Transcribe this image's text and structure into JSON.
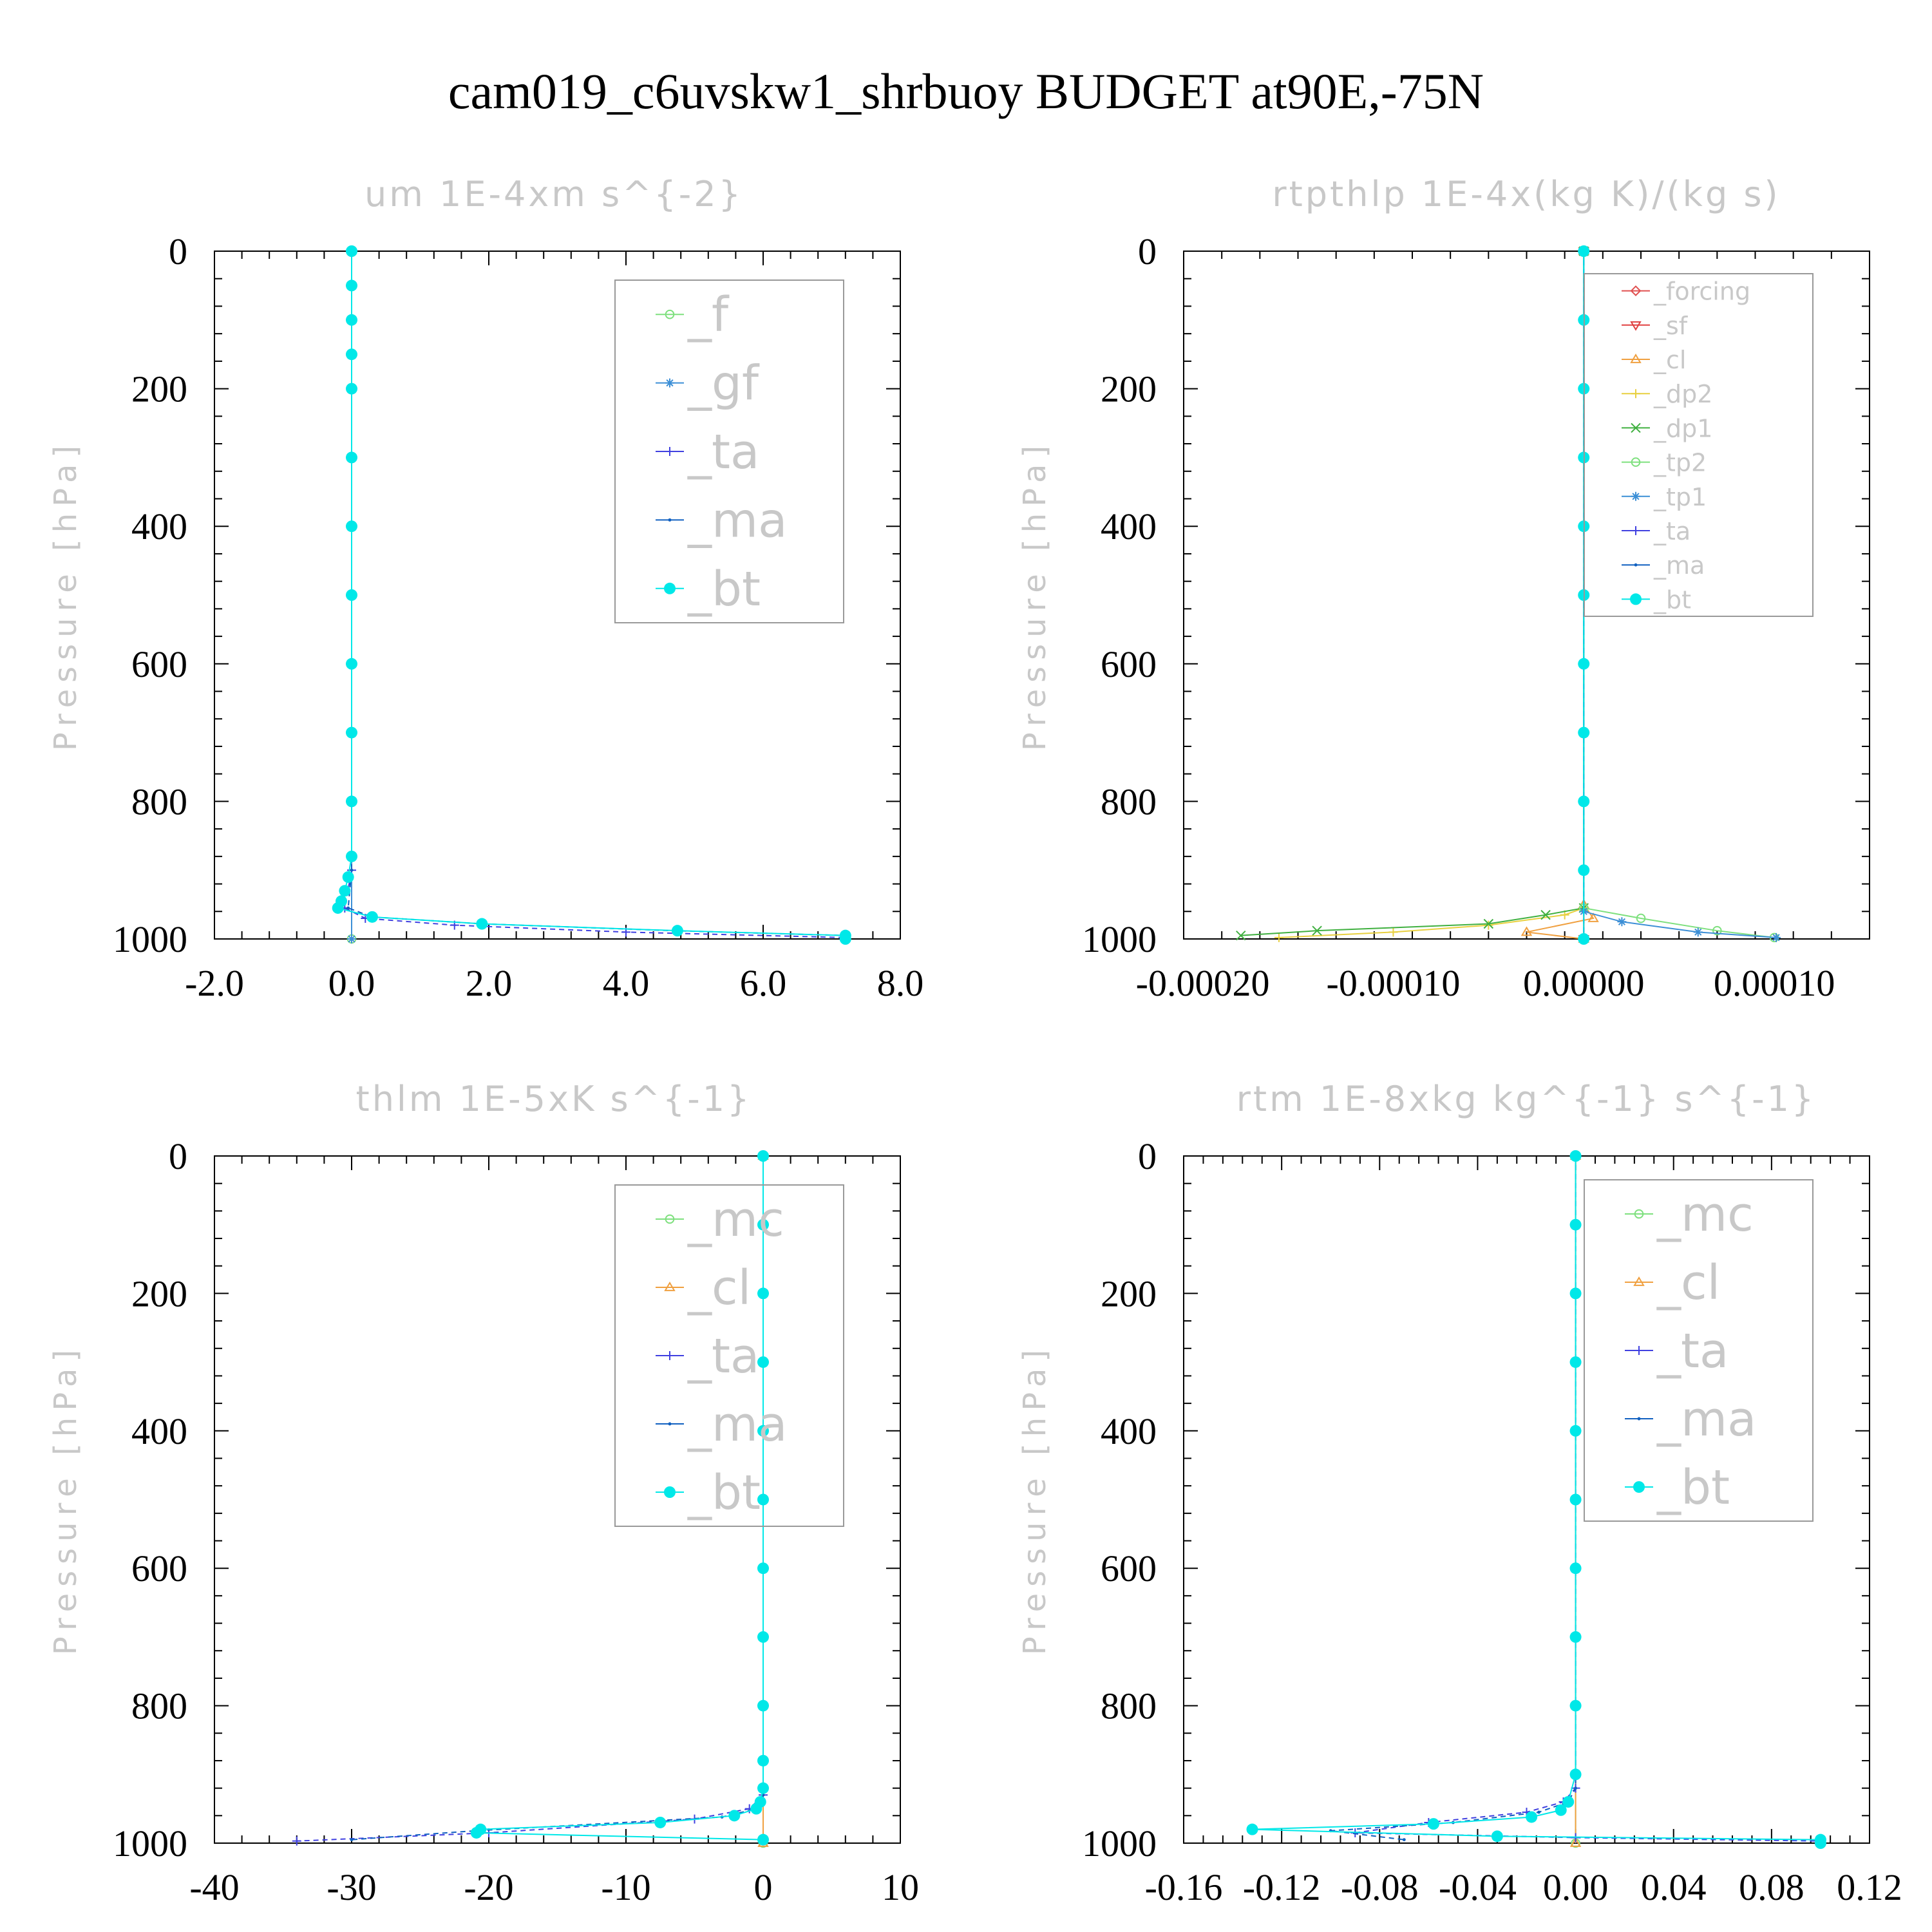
{
  "title": "cam019_c6uvskw1_shrbuoy  BUDGET at90E,-75N",
  "colors": {
    "_f": "#7ee07e",
    "_gf": "#3c8fd6",
    "_ta": "#4040e0",
    "_ma": "#1060c0",
    "_bt": "#00e8e8",
    "_forcing": "#e05050",
    "_sf": "#e04040",
    "_cl": "#f0a040",
    "_dp2": "#e8d040",
    "_dp1": "#40b040",
    "_tp2": "#7ee07e",
    "_tp1": "#3c8fd6",
    "_mc": "#7ee07e"
  },
  "chart_data": [
    {
      "type": "line",
      "title": "um  1E-4xm s^{-2}",
      "ylabel": "Pressure [hPa]",
      "xlim": [
        -2.0,
        8.0
      ],
      "ylim": [
        1000,
        0
      ],
      "xticks": [
        "-2.0",
        "0.0",
        "2.0",
        "4.0",
        "6.0",
        "8.0"
      ],
      "yticks": [
        "0",
        "200",
        "400",
        "600",
        "800",
        "1000"
      ],
      "legend": [
        "_f",
        "_gf",
        "_ta",
        "_ma",
        "_bt"
      ],
      "series": [
        {
          "name": "_f",
          "x": [
            0,
            0,
            0
          ],
          "y": [
            0,
            500,
            1000
          ]
        },
        {
          "name": "_gf",
          "x": [
            0,
            0,
            0
          ],
          "y": [
            0,
            500,
            1000
          ]
        },
        {
          "name": "_ta",
          "x": [
            0,
            0,
            -0.1,
            0.2,
            1.5,
            4.0,
            7.2
          ],
          "y": [
            0,
            900,
            955,
            970,
            980,
            990,
            998
          ]
        },
        {
          "name": "_ma",
          "x": [
            0,
            0,
            -0.05,
            0.3,
            1.9,
            4.7,
            7.2
          ],
          "y": [
            0,
            900,
            955,
            968,
            978,
            988,
            995
          ]
        },
        {
          "name": "_bt",
          "x": [
            0,
            0,
            0,
            0,
            0,
            0,
            0,
            0,
            0,
            0,
            0,
            0,
            -0.05,
            -0.1,
            -0.15,
            -0.2,
            0.3,
            1.9,
            4.75,
            7.2,
            7.2
          ],
          "y": [
            0,
            50,
            100,
            150,
            200,
            300,
            400,
            500,
            600,
            700,
            800,
            880,
            910,
            930,
            945,
            955,
            968,
            978,
            988,
            995,
            1000
          ]
        }
      ]
    },
    {
      "type": "line",
      "title": "rtpthlp  1E-4x(kg K)/(kg s)",
      "ylabel": "Pressure [hPa]",
      "xlim": [
        -0.00021,
        0.00015
      ],
      "ylim": [
        1000,
        0
      ],
      "xticks": [
        "-0.00020",
        "-0.00010",
        "0.00000",
        "0.00010"
      ],
      "yticks": [
        "0",
        "200",
        "400",
        "600",
        "800",
        "1000"
      ],
      "legend": [
        "_forcing",
        "_sf",
        "_cl",
        "_dp2",
        "_dp1",
        "_tp2",
        "_tp1",
        "_ta",
        "_ma",
        "_bt"
      ],
      "series": [
        {
          "name": "_forcing",
          "x": [
            0,
            0
          ],
          "y": [
            0,
            1000
          ]
        },
        {
          "name": "_sf",
          "x": [
            0,
            0
          ],
          "y": [
            0,
            1000
          ]
        },
        {
          "name": "_cl",
          "x": [
            0,
            0,
            5e-06,
            -3e-05,
            0
          ],
          "y": [
            0,
            950,
            970,
            990,
            1000
          ]
        },
        {
          "name": "_dp2",
          "x": [
            0,
            0,
            -1e-05,
            -5e-05,
            -0.0001,
            -0.00016
          ],
          "y": [
            0,
            955,
            965,
            980,
            990,
            998
          ]
        },
        {
          "name": "_dp1",
          "x": [
            0,
            0,
            -2e-05,
            -5e-05,
            -0.00014,
            -0.00018
          ],
          "y": [
            0,
            955,
            965,
            978,
            988,
            995
          ]
        },
        {
          "name": "_tp2",
          "x": [
            0,
            0,
            3e-05,
            7e-05,
            0.0001
          ],
          "y": [
            0,
            955,
            970,
            988,
            998
          ]
        },
        {
          "name": "_tp1",
          "x": [
            0,
            0,
            2e-05,
            6e-05,
            0.000101
          ],
          "y": [
            0,
            960,
            975,
            990,
            998
          ]
        },
        {
          "name": "_ta",
          "x": [
            0,
            0
          ],
          "y": [
            0,
            1000
          ]
        },
        {
          "name": "_ma",
          "x": [
            0,
            0
          ],
          "y": [
            0,
            1000
          ]
        },
        {
          "name": "_bt",
          "x": [
            0,
            0,
            0,
            0,
            0,
            0,
            0,
            0,
            0,
            0,
            0
          ],
          "y": [
            0,
            100,
            200,
            300,
            400,
            500,
            600,
            700,
            800,
            900,
            1000
          ]
        }
      ]
    },
    {
      "type": "line",
      "title": "thlm  1E-5xK s^{-1}",
      "ylabel": "Pressure [hPa]",
      "xlim": [
        -40,
        10
      ],
      "ylim": [
        1000,
        0
      ],
      "xticks": [
        "-40",
        "-30",
        "-20",
        "-10",
        "0",
        "10"
      ],
      "yticks": [
        "0",
        "200",
        "400",
        "600",
        "800",
        "1000"
      ],
      "legend": [
        "_mc",
        "_cl",
        "_ta",
        "_ma",
        "_bt"
      ],
      "series": [
        {
          "name": "_mc",
          "x": [
            0,
            0
          ],
          "y": [
            0,
            1000
          ]
        },
        {
          "name": "_cl",
          "x": [
            0,
            0
          ],
          "y": [
            0,
            1000
          ]
        },
        {
          "name": "_ta",
          "x": [
            0,
            0,
            -1,
            -5,
            -20,
            -34
          ],
          "y": [
            0,
            930,
            950,
            965,
            985,
            997
          ]
        },
        {
          "name": "_ma",
          "x": [
            0,
            0,
            -0.5,
            -3,
            -21,
            -30
          ],
          "y": [
            0,
            930,
            950,
            962,
            982,
            995
          ]
        },
        {
          "name": "_bt",
          "x": [
            0,
            0,
            0,
            0,
            0,
            0,
            0,
            0,
            0,
            0,
            0,
            -0.2,
            -0.5,
            -2.1,
            -7.5,
            -20.6,
            -20.9,
            0
          ],
          "y": [
            0,
            100,
            200,
            300,
            400,
            500,
            600,
            700,
            800,
            880,
            920,
            940,
            950,
            960,
            970,
            980,
            985,
            995
          ]
        }
      ]
    },
    {
      "type": "line",
      "title": "rtm  1E-8xkg kg^{-1} s^{-1}",
      "ylabel": "Pressure [hPa]",
      "xlim": [
        -0.16,
        0.12
      ],
      "ylim": [
        1000,
        0
      ],
      "xticks": [
        "-0.16",
        "-0.12",
        "-0.08",
        "-0.04",
        "0.00",
        "0.04",
        "0.08",
        "0.12"
      ],
      "yticks": [
        "0",
        "200",
        "400",
        "600",
        "800",
        "1000"
      ],
      "legend": [
        "_mc",
        "_cl",
        "_ta",
        "_ma",
        "_bt"
      ],
      "series": [
        {
          "name": "_mc",
          "x": [
            0,
            0
          ],
          "y": [
            0,
            1000
          ]
        },
        {
          "name": "_cl",
          "x": [
            0,
            0
          ],
          "y": [
            0,
            1000
          ]
        },
        {
          "name": "_ta",
          "x": [
            0,
            0,
            -0.005,
            -0.02,
            -0.06,
            -0.09,
            0.0,
            0.1
          ],
          "y": [
            0,
            920,
            940,
            955,
            970,
            985,
            992,
            997
          ]
        },
        {
          "name": "_ma",
          "x": [
            0,
            0,
            -0.003,
            -0.015,
            -0.05,
            -0.1,
            -0.07
          ],
          "y": [
            0,
            920,
            940,
            955,
            970,
            982,
            995
          ]
        },
        {
          "name": "_bt",
          "x": [
            0,
            0,
            0,
            0,
            0,
            0,
            0,
            0,
            0,
            0,
            -0.003,
            -0.006,
            -0.018,
            -0.058,
            -0.132,
            -0.032,
            0.1,
            0.1
          ],
          "y": [
            0,
            100,
            200,
            300,
            400,
            500,
            600,
            700,
            800,
            900,
            940,
            952,
            962,
            972,
            980,
            990,
            995,
            1000
          ]
        }
      ]
    }
  ]
}
